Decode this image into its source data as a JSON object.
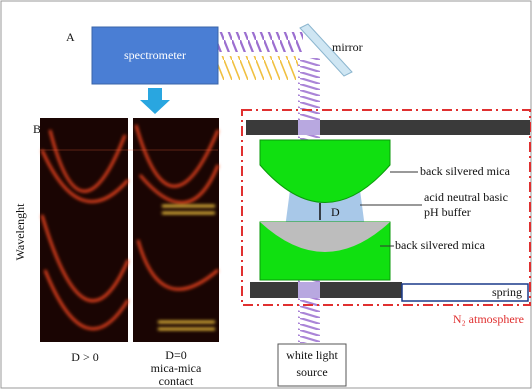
{
  "panel_a": {
    "label": "A",
    "spectrometer": "spectrometer",
    "mirror": "mirror",
    "upper_mica": "back silvered mica",
    "buffer": [
      "acid neutral basic",
      "pH buffer"
    ],
    "gap": "D",
    "lower_mica": "back silvered mica",
    "spring": "spring",
    "atmosphere": "N₂ atmosphere",
    "source": [
      "white light",
      "source"
    ]
  },
  "panel_b": {
    "label": "B",
    "y_axis": "Wavelenght",
    "left_caption": "D > 0",
    "right_caption": [
      "D=0",
      "mica-mica",
      "contact"
    ]
  }
}
